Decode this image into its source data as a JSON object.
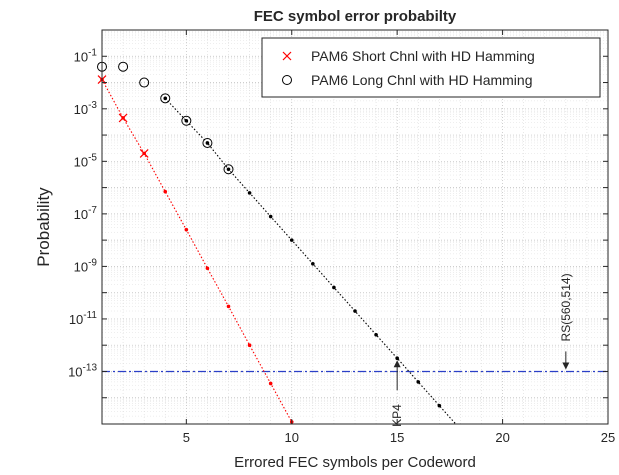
{
  "chart_data": {
    "type": "line",
    "title": "FEC symbol error probabilty",
    "xlabel": "Errored FEC symbols per Codeword",
    "ylabel": "Probability",
    "xlim": [
      1,
      25
    ],
    "ylim_log10": [
      -15,
      0
    ],
    "yscale": "log",
    "grid": true,
    "legend_position": "top-right",
    "x_ticks": [
      "5",
      "10",
      "15",
      "20",
      "25"
    ],
    "y_ticks": [
      {
        "base": "10",
        "exp": "-1"
      },
      {
        "base": "10",
        "exp": "-3"
      },
      {
        "base": "10",
        "exp": "-5"
      },
      {
        "base": "10",
        "exp": "-7"
      },
      {
        "base": "10",
        "exp": "-9"
      },
      {
        "base": "10",
        "exp": "-11"
      },
      {
        "base": "10",
        "exp": "-13"
      }
    ],
    "series": [
      {
        "name": "PAM6 Short Chnl with HD Hamming",
        "color": "#ff0000",
        "marker": "x",
        "marker_points": [
          [
            1,
            0.013
          ],
          [
            2,
            0.00045
          ],
          [
            3,
            2e-05
          ]
        ],
        "line_points": [
          [
            1,
            0.013
          ],
          [
            2,
            0.00045
          ],
          [
            3,
            2e-05
          ],
          [
            4,
            7e-07
          ],
          [
            5,
            2.5e-08
          ],
          [
            6,
            8.5e-10
          ],
          [
            7,
            3e-11
          ],
          [
            8,
            1e-12
          ],
          [
            9,
            3.5e-14
          ],
          [
            10,
            1.2e-15
          ]
        ]
      },
      {
        "name": "PAM6 Long Chnl with HD Hamming",
        "color": "#000000",
        "marker": "o",
        "marker_points": [
          [
            1,
            0.04
          ],
          [
            2,
            0.04
          ],
          [
            3,
            0.01
          ],
          [
            4,
            0.0025
          ],
          [
            5,
            0.00035
          ],
          [
            6,
            5e-05
          ],
          [
            7,
            5e-06
          ]
        ],
        "line_points": [
          [
            4,
            0.0025
          ],
          [
            5,
            0.00035
          ],
          [
            6,
            5e-05
          ],
          [
            7,
            5e-06
          ],
          [
            8,
            6.3e-07
          ],
          [
            9,
            7.9e-08
          ],
          [
            10,
            1e-08
          ],
          [
            11,
            1.26e-09
          ],
          [
            12,
            1.58e-10
          ],
          [
            13,
            2e-11
          ],
          [
            14,
            2.5e-12
          ],
          [
            15,
            3.2e-13
          ],
          [
            16,
            4e-14
          ],
          [
            17,
            5e-15
          ],
          [
            18,
            6.3e-16
          ]
        ]
      }
    ],
    "threshold": {
      "y": 1e-13,
      "color": "#2a3fc7"
    },
    "annotations": [
      {
        "text": "KP4",
        "x": 15,
        "arrow_to_y": 3.2e-13
      },
      {
        "text": "RS(560,514)",
        "x": 23,
        "arrow_to_y": 1e-13
      }
    ]
  }
}
